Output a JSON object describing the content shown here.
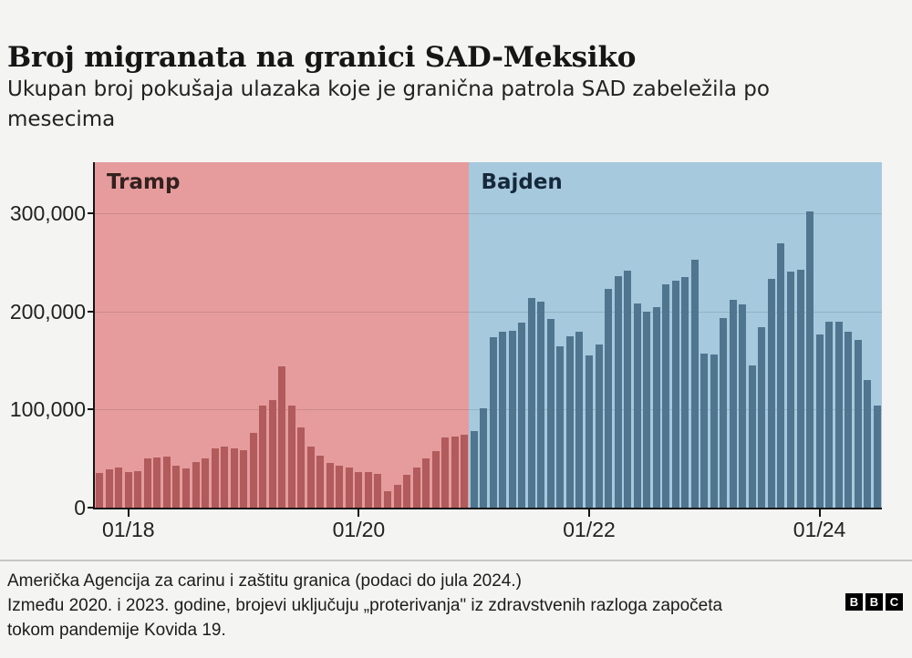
{
  "header": {
    "title": "Broj migranata na granici SAD-Meksiko",
    "subtitle_lines": [
      "Ukupan broj pokušaja ulazaka koje je granična patrola SAD zabeležila po",
      "mesecima"
    ]
  },
  "chart_data": {
    "type": "bar",
    "title": "Broj migranata na granici SAD-Meksiko",
    "subtitle": "Ukupan broj pokušaja ulazaka koje je granična patrola SAD zabeležila po mesecima",
    "ylim": [
      0,
      350000
    ],
    "grid": true,
    "yticks": [
      0,
      100000,
      200000,
      300000
    ],
    "ytick_labels": [
      "0",
      "100,000",
      "200,000",
      "300,000"
    ],
    "xticks": [
      "2018-01",
      "2020-01",
      "2022-01",
      "2024-01"
    ],
    "xtick_labels": [
      "01/18",
      "01/20",
      "01/22",
      "01/24"
    ],
    "eras": [
      {
        "label": "Tramp",
        "start": "2017-10",
        "end": "2020-12",
        "zone_color": "#e69c9c",
        "bar_color": "#b25b5d",
        "label_color": "#33201f"
      },
      {
        "label": "Bajden",
        "start": "2021-01",
        "end": "2024-07",
        "zone_color": "#a6c9dd",
        "bar_color": "#4f768e",
        "label_color": "#16293a"
      }
    ],
    "months": [
      "2017-10",
      "2017-11",
      "2017-12",
      "2018-01",
      "2018-02",
      "2018-03",
      "2018-04",
      "2018-05",
      "2018-06",
      "2018-07",
      "2018-08",
      "2018-09",
      "2018-10",
      "2018-11",
      "2018-12",
      "2019-01",
      "2019-02",
      "2019-03",
      "2019-04",
      "2019-05",
      "2019-06",
      "2019-07",
      "2019-08",
      "2019-09",
      "2019-10",
      "2019-11",
      "2019-12",
      "2020-01",
      "2020-02",
      "2020-03",
      "2020-04",
      "2020-05",
      "2020-06",
      "2020-07",
      "2020-08",
      "2020-09",
      "2020-10",
      "2020-11",
      "2020-12",
      "2021-01",
      "2021-02",
      "2021-03",
      "2021-04",
      "2021-05",
      "2021-06",
      "2021-07",
      "2021-08",
      "2021-09",
      "2021-10",
      "2021-11",
      "2021-12",
      "2022-01",
      "2022-02",
      "2022-03",
      "2022-04",
      "2022-05",
      "2022-06",
      "2022-07",
      "2022-08",
      "2022-09",
      "2022-10",
      "2022-11",
      "2022-12",
      "2023-01",
      "2023-02",
      "2023-03",
      "2023-04",
      "2023-05",
      "2023-06",
      "2023-07",
      "2023-08",
      "2023-09",
      "2023-10",
      "2023-11",
      "2023-12",
      "2024-01",
      "2024-02",
      "2024-03",
      "2024-04",
      "2024-05",
      "2024-06",
      "2024-07"
    ],
    "values": [
      34871,
      39051,
      40513,
      35905,
      36751,
      50347,
      51168,
      51862,
      43180,
      40011,
      46719,
      50568,
      60781,
      62469,
      60794,
      58317,
      76545,
      103731,
      109415,
      144116,
      104311,
      81777,
      62707,
      52546,
      45139,
      42643,
      40565,
      36585,
      36687,
      34460,
      17106,
      23237,
      33049,
      40929,
      50014,
      57674,
      71929,
      72113,
      73994,
      78414,
      101099,
      173277,
      178854,
      180597,
      188829,
      213593,
      209840,
      192001,
      164837,
      174845,
      179253,
      154874,
      165894,
      222574,
      235785,
      241136,
      207834,
      200162,
      204087,
      227547,
      231529,
      234896,
      252315,
      156630,
      156138,
      193254,
      211992,
      206701,
      144566,
      183503,
      232963,
      269735,
      240988,
      242418,
      301983,
      176205,
      189913,
      189372,
      179725,
      170723,
      130415,
      104116
    ]
  },
  "footer": {
    "source_lines": [
      "Američka Agencija za carinu i zaštitu granica (podaci do jula 2024.)",
      "Između 2020. i 2023. godine, brojevi uključuju „proterivanja\" iz zdravstvenih razloga započeta",
      "tokom pandemije Kovida 19."
    ],
    "logo_letters": [
      "B",
      "B",
      "C"
    ]
  }
}
